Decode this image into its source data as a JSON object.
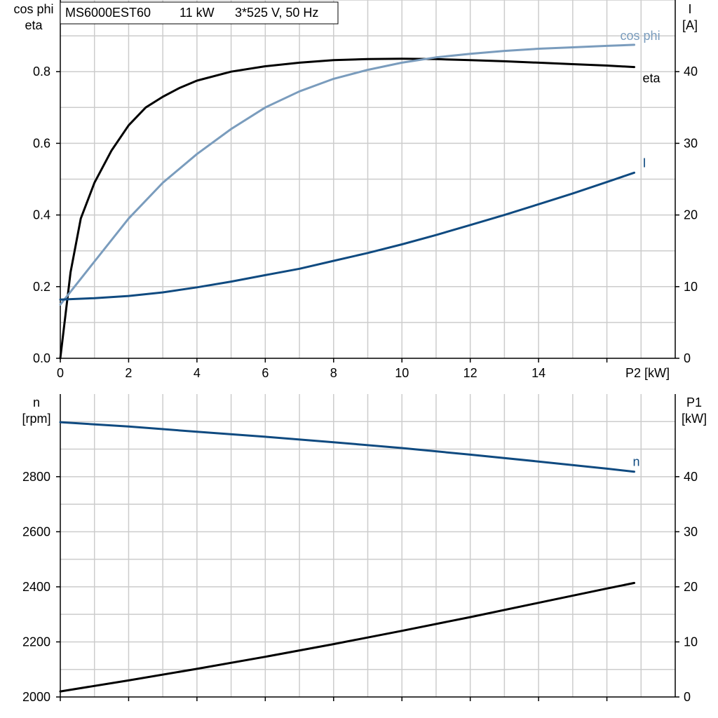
{
  "header": {
    "model": "MS6000EST60",
    "power": "11 kW",
    "supply": "3*525 V, 50 Hz"
  },
  "colors": {
    "eta": "#000000",
    "cos_phi": "#7a9cbd",
    "current": "#0f4a80",
    "speed": "#0f4a80",
    "p1": "#000000"
  },
  "chart_data": [
    {
      "type": "line",
      "x_label": "P2 [kW]",
      "xlim": [
        0,
        18
      ],
      "x_ticks": [
        0,
        2,
        4,
        6,
        8,
        10,
        12,
        14
      ],
      "y_left_label_lines": [
        "cos phi",
        "eta"
      ],
      "y_left_lim": [
        0,
        1.0
      ],
      "y_left_ticks": [
        "0.0",
        "0.2",
        "0.4",
        "0.6",
        "0.8"
      ],
      "y_right_label_lines": [
        "I",
        "[A]"
      ],
      "y_right_lim": [
        0,
        50
      ],
      "y_right_ticks": [
        "0",
        "10",
        "20",
        "30",
        "40"
      ],
      "grid": true,
      "series": [
        {
          "name": "eta",
          "axis": "left",
          "color_key": "eta",
          "x": [
            0,
            0.3,
            0.6,
            1.0,
            1.5,
            2.0,
            2.5,
            3.0,
            3.5,
            4.0,
            5.0,
            6.0,
            7.0,
            8.0,
            9.0,
            10.0,
            11.0,
            12.0,
            13.0,
            14.0,
            15.0,
            16.0,
            16.8
          ],
          "values": [
            0.0,
            0.24,
            0.39,
            0.49,
            0.58,
            0.65,
            0.7,
            0.73,
            0.755,
            0.775,
            0.8,
            0.815,
            0.825,
            0.832,
            0.835,
            0.836,
            0.835,
            0.832,
            0.829,
            0.825,
            0.821,
            0.817,
            0.813
          ]
        },
        {
          "name": "cos phi",
          "axis": "left",
          "color_key": "cos_phi",
          "x": [
            0,
            0.5,
            1.0,
            2.0,
            3.0,
            4.0,
            5.0,
            6.0,
            7.0,
            8.0,
            9.0,
            10.0,
            11.0,
            12.0,
            13.0,
            14.0,
            15.0,
            16.0,
            16.8
          ],
          "values": [
            0.15,
            0.21,
            0.27,
            0.39,
            0.49,
            0.57,
            0.64,
            0.7,
            0.745,
            0.78,
            0.805,
            0.825,
            0.84,
            0.85,
            0.858,
            0.864,
            0.868,
            0.872,
            0.875
          ]
        },
        {
          "name": "I",
          "axis": "right",
          "color_key": "current",
          "x": [
            0,
            1,
            2,
            3,
            4,
            5,
            6,
            7,
            8,
            9,
            10,
            11,
            12,
            13,
            14,
            15,
            16,
            16.8
          ],
          "values": [
            8.2,
            8.4,
            8.7,
            9.2,
            9.9,
            10.7,
            11.6,
            12.5,
            13.6,
            14.7,
            15.9,
            17.2,
            18.6,
            20.0,
            21.5,
            23.0,
            24.6,
            25.9
          ]
        }
      ]
    },
    {
      "type": "line",
      "x_label": "",
      "xlim": [
        0,
        18
      ],
      "x_ticks": [],
      "y_left_label_lines": [
        "n",
        "[rpm]"
      ],
      "y_left_lim": [
        2000,
        3100
      ],
      "y_left_ticks": [
        "2000",
        "2200",
        "2400",
        "2600",
        "2800"
      ],
      "y_right_label_lines": [
        "P1",
        "[kW]"
      ],
      "y_right_lim": [
        0,
        55
      ],
      "y_right_ticks": [
        "0",
        "10",
        "20",
        "30",
        "40"
      ],
      "grid": true,
      "series": [
        {
          "name": "n",
          "axis": "left",
          "color_key": "speed",
          "x": [
            0,
            2,
            4,
            6,
            8,
            10,
            12,
            14,
            16,
            16.8
          ],
          "values": [
            2998,
            2982,
            2963,
            2945,
            2925,
            2904,
            2880,
            2855,
            2829,
            2818
          ]
        },
        {
          "name": "",
          "axis": "right",
          "color_key": "p1",
          "x": [
            0,
            2,
            4,
            6,
            8,
            10,
            12,
            14,
            16,
            16.8
          ],
          "values": [
            1.0,
            3.0,
            5.1,
            7.3,
            9.6,
            12.0,
            14.5,
            17.1,
            19.7,
            20.7
          ]
        }
      ]
    }
  ]
}
